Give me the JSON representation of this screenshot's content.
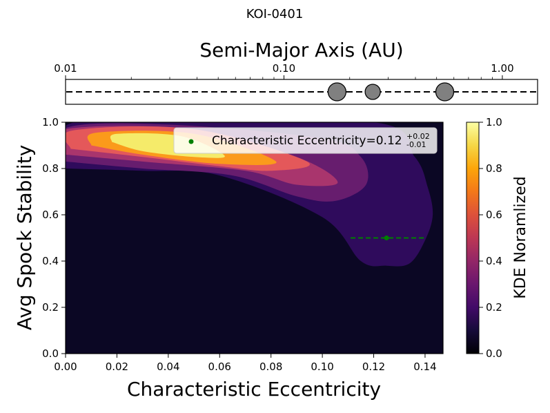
{
  "figure_title": "KOI-0401",
  "chart_data": [
    {
      "type": "scatter",
      "panel": "semi-major-axis",
      "xlabel": "Semi-Major Axis (AU)",
      "x_scale": "log",
      "xlim": [
        0.01,
        1.45
      ],
      "x_ticks": [
        0.01,
        0.1,
        1.0
      ],
      "x_tick_labels": [
        "0.01",
        "0.10",
        "1.00"
      ],
      "tick_position": "top",
      "planets_au": [
        0.175,
        0.255,
        0.545
      ],
      "marker_color": "#808080",
      "line_style": "dashed"
    },
    {
      "type": "heatmap",
      "panel": "kde",
      "xlabel": "Characteristic Eccentricity",
      "ylabel": "Avg Spock Stability",
      "xlim": [
        0.0,
        0.147
      ],
      "ylim": [
        0.0,
        1.0
      ],
      "x_ticks": [
        "0.00",
        "0.02",
        "0.04",
        "0.06",
        "0.08",
        "0.10",
        "0.12",
        "0.14"
      ],
      "y_ticks": [
        "0.0",
        "0.2",
        "0.4",
        "0.6",
        "0.8",
        "1.0"
      ],
      "colorbar_label": "KDE Noramlized",
      "colorbar_ticks": [
        "0.0",
        "0.2",
        "0.4",
        "0.6",
        "0.8",
        "1.0"
      ],
      "colormap": "inferno",
      "kde_levels": [
        {
          "level": 0.1,
          "color": "#2f0b5c",
          "points": [
            [
              0.0,
              0.8
            ],
            [
              0.0,
              0.985
            ],
            [
              0.03,
              1.0
            ],
            [
              0.12,
              1.0
            ],
            [
              0.136,
              0.85
            ],
            [
              0.141,
              0.72
            ],
            [
              0.143,
              0.6
            ],
            [
              0.14,
              0.49
            ],
            [
              0.134,
              0.39
            ],
            [
              0.125,
              0.38
            ],
            [
              0.115,
              0.4
            ],
            [
              0.1,
              0.59
            ],
            [
              0.06,
              0.77
            ],
            [
              0.03,
              0.79
            ],
            [
              0.0,
              0.8
            ]
          ]
        },
        {
          "level": 0.2,
          "color": "#671d6e",
          "points": [
            [
              0.0,
              0.83
            ],
            [
              0.0,
              0.975
            ],
            [
              0.04,
              0.99
            ],
            [
              0.1,
              0.93
            ],
            [
              0.115,
              0.85
            ],
            [
              0.117,
              0.73
            ],
            [
              0.105,
              0.66
            ],
            [
              0.09,
              0.68
            ],
            [
              0.065,
              0.77
            ],
            [
              0.03,
              0.8
            ],
            [
              0.0,
              0.83
            ]
          ]
        },
        {
          "level": 0.4,
          "color": "#a9356d",
          "points": [
            [
              0.0,
              0.86
            ],
            [
              0.0,
              0.97
            ],
            [
              0.05,
              0.97
            ],
            [
              0.09,
              0.85
            ],
            [
              0.106,
              0.74
            ],
            [
              0.09,
              0.73
            ],
            [
              0.07,
              0.79
            ],
            [
              0.03,
              0.83
            ],
            [
              0.0,
              0.86
            ]
          ]
        },
        {
          "level": 0.6,
          "color": "#e4585a",
          "points": [
            [
              0.002,
              0.885
            ],
            [
              0.003,
              0.965
            ],
            [
              0.05,
              0.97
            ],
            [
              0.094,
              0.83
            ],
            [
              0.08,
              0.79
            ],
            [
              0.06,
              0.81
            ],
            [
              0.03,
              0.85
            ],
            [
              0.002,
              0.885
            ]
          ]
        },
        {
          "level": 0.8,
          "color": "#fb9a1b",
          "points": [
            [
              0.01,
              0.9
            ],
            [
              0.012,
              0.955
            ],
            [
              0.05,
              0.95
            ],
            [
              0.082,
              0.83
            ],
            [
              0.06,
              0.82
            ],
            [
              0.03,
              0.86
            ],
            [
              0.01,
              0.9
            ]
          ]
        },
        {
          "level": 0.95,
          "color": "#f5eb6a",
          "points": [
            [
              0.018,
              0.915
            ],
            [
              0.02,
              0.95
            ],
            [
              0.045,
              0.94
            ],
            [
              0.062,
              0.855
            ],
            [
              0.05,
              0.85
            ],
            [
              0.03,
              0.875
            ],
            [
              0.018,
              0.915
            ]
          ]
        }
      ],
      "estimate": {
        "label": "Characteristic Eccentricity=0.12",
        "value": 0.125,
        "plus": "+0.02",
        "minus": "-0.01",
        "y": 0.5,
        "interval": [
          0.111,
          0.14
        ],
        "color": "#008000"
      }
    }
  ]
}
